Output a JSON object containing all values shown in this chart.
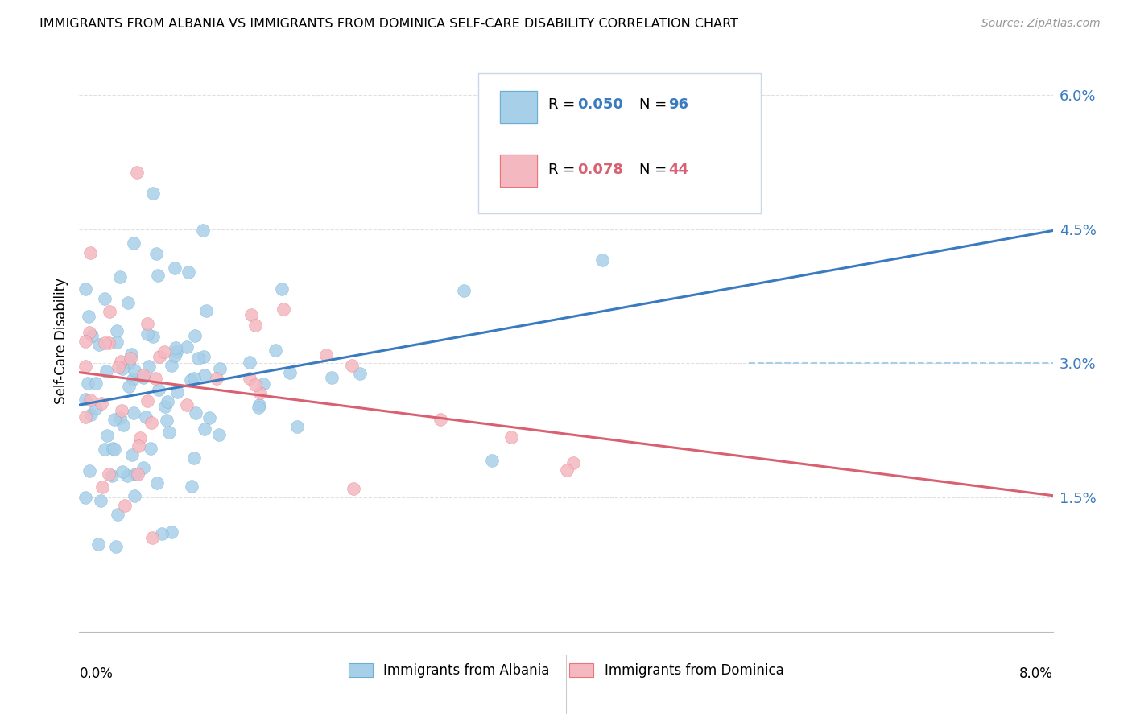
{
  "title": "IMMIGRANTS FROM ALBANIA VS IMMIGRANTS FROM DOMINICA SELF-CARE DISABILITY CORRELATION CHART",
  "source": "Source: ZipAtlas.com",
  "ylabel": "Self-Care Disability",
  "xlim": [
    0.0,
    0.08
  ],
  "ylim": [
    0.0,
    0.065
  ],
  "yticks": [
    0.0,
    0.015,
    0.03,
    0.045,
    0.06
  ],
  "ytick_labels": [
    "",
    "1.5%",
    "3.0%",
    "4.5%",
    "6.0%"
  ],
  "albania_color": "#a8cfe8",
  "albania_edge": "#6baed6",
  "dominica_color": "#f4b8c1",
  "dominica_edge": "#e8767a",
  "albania_line_color": "#3a7abf",
  "dominica_line_color": "#d96070",
  "dashed_line_color": "#a8cfe8",
  "albania_R": "0.050",
  "albania_N": "96",
  "dominica_R": "0.078",
  "dominica_N": "44",
  "grid_color": "#e0e0e0",
  "background_color": "#ffffff",
  "legend_box_color": "#f0f4f8",
  "legend_border_color": "#c0ccd8"
}
